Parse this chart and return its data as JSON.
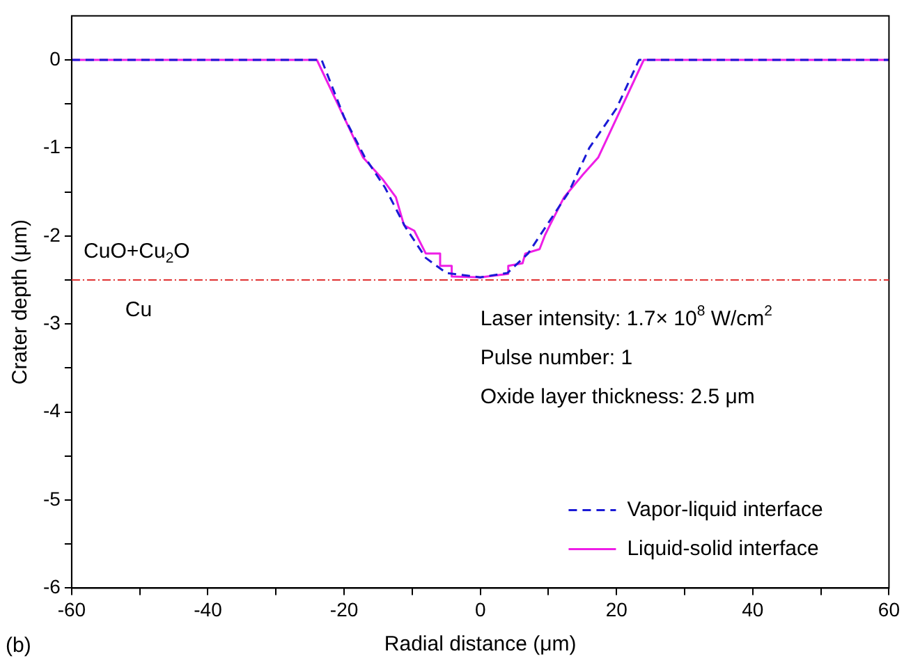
{
  "chart_data": {
    "type": "line",
    "xlabel": "Radial distance (μm)",
    "ylabel": "Crater depth (μm)",
    "xlim": [
      -60,
      60
    ],
    "ylim": [
      -6,
      0.5
    ],
    "xticks": [
      -60,
      {
        "value": -50,
        "label": null
      },
      -40,
      {
        "value": -30,
        "label": null
      },
      -20,
      {
        "value": -10,
        "label": null
      },
      0,
      {
        "value": 10,
        "label": null
      },
      20,
      {
        "value": 30,
        "label": null
      },
      40,
      {
        "value": 50,
        "label": null
      },
      60
    ],
    "yticks": [
      -6,
      {
        "value": -5.5,
        "label": null
      },
      -5,
      {
        "value": -4.5,
        "label": null
      },
      -4,
      {
        "value": -3.5,
        "label": null
      },
      -3,
      {
        "value": -2.5,
        "label": null
      },
      -2,
      {
        "value": -1.5,
        "label": null
      },
      -1,
      {
        "value": -0.5,
        "label": null
      },
      0
    ],
    "grid": false,
    "legend": "bottom right",
    "marker": "none",
    "series": [
      {
        "name": "Vapor-liquid interface",
        "color": "#1a1ad6",
        "line_style": "dashed",
        "x": [
          -60,
          -23.3,
          -20,
          -17,
          -14,
          -11,
          -8,
          -5,
          0,
          4,
          7,
          10,
          13,
          16,
          20,
          23.3,
          60
        ],
        "values": [
          0,
          0,
          -0.65,
          -1.1,
          -1.45,
          -1.9,
          -2.25,
          -2.42,
          -2.47,
          -2.42,
          -2.2,
          -1.85,
          -1.5,
          -1.0,
          -0.55,
          0,
          0
        ]
      },
      {
        "name": "Liquid-solid interface",
        "color": "#ee1ee6",
        "line_style": "solid",
        "x": [
          -60,
          -24,
          -17.2,
          -14.4,
          -12.4,
          -11.2,
          -9.7,
          -8,
          -5.9,
          -5.9,
          -4.2,
          -4.2,
          0,
          4.1,
          4.1,
          6.2,
          6.6,
          8.7,
          9.5,
          10.2,
          12.3,
          15.1,
          17.3,
          24,
          60
        ],
        "values": [
          0,
          0,
          -1.11,
          -1.35,
          -1.56,
          -1.88,
          -1.94,
          -2.2,
          -2.2,
          -2.34,
          -2.34,
          -2.46,
          -2.47,
          -2.43,
          -2.34,
          -2.31,
          -2.2,
          -2.15,
          -1.99,
          -1.88,
          -1.56,
          -1.3,
          -1.11,
          0,
          0
        ]
      }
    ],
    "ref_lines": [
      {
        "axis": "y",
        "value": -2.5,
        "color": "#e03030",
        "line_style": "dashed"
      }
    ],
    "annotations": [
      "CuO+Cu$_{2}$O",
      "Cu",
      "Laser intensity: 1.7× 10$^{8}$ W/cm$^{2}$",
      "Pulse number: 1",
      "Oxide layer thickness: 2.5 μm",
      "(b)"
    ]
  }
}
